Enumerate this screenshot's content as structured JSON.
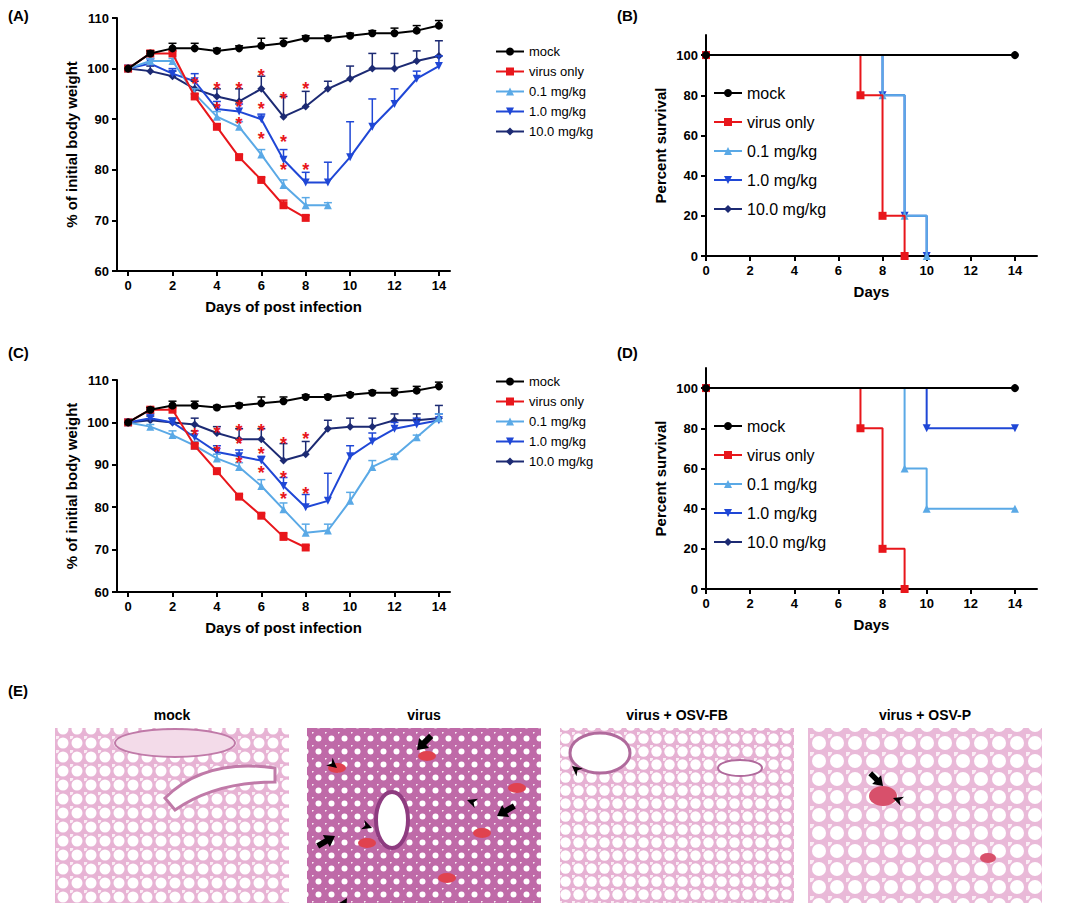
{
  "chart_data": [
    {
      "panel": "(A)",
      "type": "line",
      "x_label": "Days of post infection",
      "y_label": "% of initial body weight",
      "x": [
        0,
        1,
        2,
        3,
        4,
        5,
        6,
        7,
        8,
        9,
        10,
        11,
        12,
        13,
        14
      ],
      "xlim": [
        -0.5,
        14.5
      ],
      "xticks": [
        0,
        2,
        4,
        6,
        8,
        10,
        12,
        14
      ],
      "ylim": [
        60,
        110
      ],
      "yticks": [
        60,
        70,
        80,
        90,
        100,
        110
      ],
      "grid": false,
      "legend": "right",
      "series": [
        {
          "name": "mock",
          "color": "#000000",
          "marker": "circle",
          "values": [
            100,
            103,
            104,
            104,
            103.5,
            104,
            104.5,
            105,
            106,
            106,
            106.5,
            107,
            107,
            107.5,
            108.5
          ],
          "errors": [
            0,
            0.5,
            1,
            1,
            0.5,
            0.5,
            1.5,
            1,
            0.5,
            0.5,
            0.5,
            0.5,
            1,
            1,
            1
          ]
        },
        {
          "name": "virus only",
          "color": "#e8161b",
          "marker": "square",
          "values": [
            100,
            103,
            103,
            94.5,
            88.5,
            82.5,
            78,
            73,
            70.5,
            null,
            null,
            null,
            null,
            null,
            null
          ],
          "errors": [
            0,
            0.5,
            0.5,
            0.5,
            0.5,
            0.5,
            0.5,
            1,
            0.5,
            null,
            null,
            null,
            null,
            null,
            null
          ]
        },
        {
          "name": "0.1 mg/kg",
          "color": "#5aa9e6",
          "marker": "triangle",
          "values": [
            100,
            101.5,
            101.5,
            95,
            90.5,
            88.5,
            83,
            77,
            73,
            73,
            null,
            null,
            null,
            null,
            null
          ],
          "errors": [
            0,
            0.5,
            0.5,
            1,
            1,
            1,
            1,
            1,
            1.5,
            0.5,
            null,
            null,
            null,
            null,
            null
          ]
        },
        {
          "name": "1.0 mg/kg",
          "color": "#1f47d6",
          "marker": "triangle-down",
          "values": [
            100,
            101,
            99,
            97.5,
            92,
            91.5,
            90,
            82,
            77.5,
            77.5,
            82.5,
            88.5,
            93,
            98,
            100.5
          ],
          "errors": [
            0,
            1,
            1,
            1.5,
            1.5,
            1.5,
            1,
            2,
            2,
            4,
            7,
            5.5,
            3,
            1.5,
            2
          ]
        },
        {
          "name": "10.0 mg/kg",
          "color": "#1c2a73",
          "marker": "diamond",
          "values": [
            100,
            99.5,
            98.5,
            96,
            94.5,
            93.5,
            96,
            90.5,
            92.5,
            96,
            98,
            100,
            100,
            101.5,
            102.5
          ],
          "errors": [
            0,
            1,
            1,
            1.5,
            1.5,
            2.5,
            2.5,
            4,
            3,
            1.5,
            2.5,
            3,
            3,
            2,
            3
          ]
        }
      ],
      "annotations": [
        {
          "text": "*",
          "x": 3,
          "y": 97,
          "color": "#e8161b"
        },
        {
          "text": "*",
          "x": 4,
          "y": 96,
          "color": "#e8161b"
        },
        {
          "text": "*",
          "x": 4,
          "y": 92,
          "color": "#e8161b"
        },
        {
          "text": "*",
          "x": 5,
          "y": 96,
          "color": "#e8161b"
        },
        {
          "text": "*",
          "x": 5,
          "y": 92.5,
          "color": "#e8161b"
        },
        {
          "text": "*",
          "x": 5,
          "y": 89,
          "color": "#e8161b"
        },
        {
          "text": "*",
          "x": 6,
          "y": 98.5,
          "color": "#e8161b"
        },
        {
          "text": "*",
          "x": 6,
          "y": 92,
          "color": "#e8161b"
        },
        {
          "text": "*",
          "x": 6,
          "y": 86,
          "color": "#e8161b"
        },
        {
          "text": "*",
          "x": 7,
          "y": 94,
          "color": "#e8161b"
        },
        {
          "text": "*",
          "x": 7,
          "y": 85.5,
          "color": "#e8161b"
        },
        {
          "text": "*",
          "x": 7,
          "y": 80,
          "color": "#e8161b"
        },
        {
          "text": "*",
          "x": 8,
          "y": 96,
          "color": "#e8161b"
        },
        {
          "text": "*",
          "x": 8,
          "y": 80,
          "color": "#e8161b"
        }
      ]
    },
    {
      "panel": "(B)",
      "type": "step",
      "x_label": "Days",
      "y_label": "Percent survival",
      "xlim": [
        0,
        15
      ],
      "xticks": [
        0,
        2,
        4,
        6,
        8,
        10,
        12,
        14
      ],
      "ylim": [
        0,
        110
      ],
      "yticks": [
        0,
        20,
        40,
        60,
        80,
        100
      ],
      "grid": false,
      "legend": "left",
      "series": [
        {
          "name": "mock",
          "color": "#000000",
          "marker": "circle",
          "x": [
            0,
            14
          ],
          "values": [
            100,
            100
          ]
        },
        {
          "name": "virus only",
          "color": "#e8161b",
          "marker": "square",
          "x": [
            0,
            7,
            8,
            9
          ],
          "values": [
            100,
            80,
            20,
            0
          ]
        },
        {
          "name": "0.1 mg/kg",
          "color": "#5aa9e6",
          "marker": "triangle",
          "x": [
            0,
            8,
            9,
            10
          ],
          "values": [
            100,
            80,
            20,
            0
          ]
        },
        {
          "name": "1.0 mg/kg",
          "color": "#1f47d6",
          "marker": "triangle-down",
          "x": [
            0,
            8,
            9,
            10
          ],
          "values": [
            100,
            80,
            20,
            0
          ]
        },
        {
          "name": "10.0 mg/kg",
          "color": "#1c2a73",
          "marker": "diamond",
          "x": [
            0,
            14
          ],
          "values": [
            100,
            100
          ]
        }
      ]
    },
    {
      "panel": "(C)",
      "type": "line",
      "x_label": "Days of post infection",
      "y_label": "% of initial body weight",
      "x": [
        0,
        1,
        2,
        3,
        4,
        5,
        6,
        7,
        8,
        9,
        10,
        11,
        12,
        13,
        14
      ],
      "xlim": [
        -0.5,
        14.5
      ],
      "xticks": [
        0,
        2,
        4,
        6,
        8,
        10,
        12,
        14
      ],
      "ylim": [
        60,
        110
      ],
      "yticks": [
        60,
        70,
        80,
        90,
        100,
        110
      ],
      "grid": false,
      "legend": "right",
      "series": [
        {
          "name": "mock",
          "color": "#000000",
          "marker": "circle",
          "values": [
            100,
            103,
            104,
            104,
            103.5,
            104,
            104.5,
            105,
            106,
            106,
            106.5,
            107,
            107,
            107.5,
            108.5
          ],
          "errors": [
            0,
            0.5,
            1,
            1,
            0.5,
            0.5,
            1.5,
            1,
            0.5,
            0.5,
            0.5,
            0.5,
            1,
            1,
            1
          ]
        },
        {
          "name": "virus only",
          "color": "#e8161b",
          "marker": "square",
          "values": [
            100,
            103,
            103,
            94.5,
            88.5,
            82.5,
            78,
            73,
            70.5,
            null,
            null,
            null,
            null,
            null,
            null
          ],
          "errors": [
            0,
            0.5,
            0.5,
            0.5,
            0.5,
            0.5,
            0.5,
            1,
            0.5,
            null,
            null,
            null,
            null,
            null,
            null
          ]
        },
        {
          "name": "0.1 mg/kg",
          "color": "#5aa9e6",
          "marker": "triangle",
          "values": [
            100,
            99,
            97,
            94.5,
            91.5,
            89.5,
            85,
            79.5,
            74,
            74.5,
            81.5,
            89.5,
            92,
            96.5,
            101
          ],
          "errors": [
            0,
            0.5,
            1,
            1,
            1,
            1,
            1.5,
            1.5,
            2,
            1.5,
            2,
            1.5,
            0.5,
            0.5,
            1
          ]
        },
        {
          "name": "1.0 mg/kg",
          "color": "#1f47d6",
          "marker": "triangle-down",
          "values": [
            100,
            101,
            100,
            96.5,
            93,
            92,
            91,
            85,
            80,
            81.5,
            92,
            95.5,
            98.5,
            99.5,
            100.5
          ],
          "errors": [
            0,
            1,
            1,
            1.5,
            1.5,
            1.5,
            1,
            2,
            3,
            6.5,
            2.5,
            2,
            1.5,
            1.5,
            1.5
          ]
        },
        {
          "name": "10.0 mg/kg",
          "color": "#1c2a73",
          "marker": "diamond",
          "values": [
            100,
            100.5,
            100,
            99.5,
            97.5,
            96,
            96,
            91,
            92.5,
            98.5,
            99,
            99,
            100.5,
            100.5,
            101
          ],
          "errors": [
            0,
            1,
            1,
            1.5,
            1.5,
            2.5,
            2.5,
            4,
            3,
            2,
            2,
            2,
            1.5,
            1.5,
            3
          ]
        }
      ],
      "annotations": [
        {
          "text": "*",
          "x": 3,
          "y": 97,
          "color": "#e8161b"
        },
        {
          "text": "*",
          "x": 4,
          "y": 97.5,
          "color": "#e8161b"
        },
        {
          "text": "*",
          "x": 4,
          "y": 93,
          "color": "#e8161b"
        },
        {
          "text": "*",
          "x": 5,
          "y": 98,
          "color": "#e8161b"
        },
        {
          "text": "*",
          "x": 5,
          "y": 95,
          "color": "#e8161b"
        },
        {
          "text": "*",
          "x": 5,
          "y": 90.5,
          "color": "#e8161b"
        },
        {
          "text": "*",
          "x": 6,
          "y": 98,
          "color": "#e8161b"
        },
        {
          "text": "*",
          "x": 6,
          "y": 92.5,
          "color": "#e8161b"
        },
        {
          "text": "*",
          "x": 6,
          "y": 88,
          "color": "#e8161b"
        },
        {
          "text": "*",
          "x": 7,
          "y": 95,
          "color": "#e8161b"
        },
        {
          "text": "*",
          "x": 7,
          "y": 87,
          "color": "#e8161b"
        },
        {
          "text": "*",
          "x": 7,
          "y": 82,
          "color": "#e8161b"
        },
        {
          "text": "*",
          "x": 8,
          "y": 96,
          "color": "#e8161b"
        },
        {
          "text": "*",
          "x": 8,
          "y": 83,
          "color": "#e8161b"
        }
      ]
    },
    {
      "panel": "(D)",
      "type": "step",
      "x_label": "Days",
      "y_label": "Percent survival",
      "xlim": [
        0,
        15
      ],
      "xticks": [
        0,
        2,
        4,
        6,
        8,
        10,
        12,
        14
      ],
      "ylim": [
        0,
        110
      ],
      "yticks": [
        0,
        20,
        40,
        60,
        80,
        100
      ],
      "grid": false,
      "legend": "left",
      "series": [
        {
          "name": "mock",
          "color": "#000000",
          "marker": "circle",
          "x": [
            0,
            14
          ],
          "values": [
            100,
            100
          ]
        },
        {
          "name": "virus only",
          "color": "#e8161b",
          "marker": "square",
          "x": [
            0,
            7,
            8,
            9
          ],
          "values": [
            100,
            80,
            20,
            0
          ]
        },
        {
          "name": "0.1 mg/kg",
          "color": "#5aa9e6",
          "marker": "triangle",
          "x": [
            0,
            9,
            10,
            14
          ],
          "values": [
            100,
            60,
            40,
            40
          ]
        },
        {
          "name": "1.0 mg/kg",
          "color": "#1f47d6",
          "marker": "triangle-down",
          "x": [
            0,
            10,
            14
          ],
          "values": [
            100,
            80,
            80
          ]
        },
        {
          "name": "10.0 mg/kg",
          "color": "#1c2a73",
          "marker": "diamond",
          "x": [
            0,
            14
          ],
          "values": [
            100,
            100
          ]
        }
      ]
    }
  ],
  "histology": {
    "panel": "(E)",
    "titles": [
      "mock",
      "virus",
      "virus + OSV-FB",
      "virus + OSV-P"
    ]
  }
}
